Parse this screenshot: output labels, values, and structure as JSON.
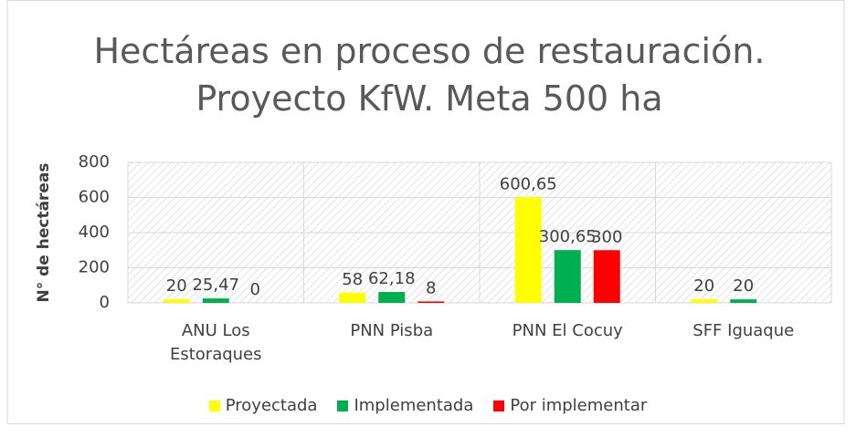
{
  "chart_data": {
    "type": "bar",
    "title": "Hectáreas en proceso de restauración. Proyecto KfW. Meta 500 ha",
    "y_label": "N° de hectáreas",
    "categories": [
      "ANU Los Estoraques",
      "PNN Pisba",
      "PNN El Cocuy",
      "SFF Iguaque"
    ],
    "series": [
      {
        "name": "Proyectada",
        "color": "#ffff00",
        "values": [
          20,
          58,
          600.65,
          20
        ],
        "value_labels": [
          "20",
          "58",
          "600,65",
          "20"
        ]
      },
      {
        "name": "Implementada",
        "color": "#00b050",
        "values": [
          25.47,
          62.18,
          300.65,
          20
        ],
        "value_labels": [
          "25,47",
          "62,18",
          "300,65",
          "20"
        ]
      },
      {
        "name": "Por implementar",
        "color": "#ff0000",
        "values": [
          0,
          8,
          300,
          null
        ],
        "value_labels": [
          "0",
          "8",
          "300",
          null
        ]
      }
    ],
    "ylim": [
      0,
      800
    ],
    "yticks": [
      0,
      200,
      400,
      600,
      800
    ],
    "grid": true,
    "legend": "bottom"
  }
}
